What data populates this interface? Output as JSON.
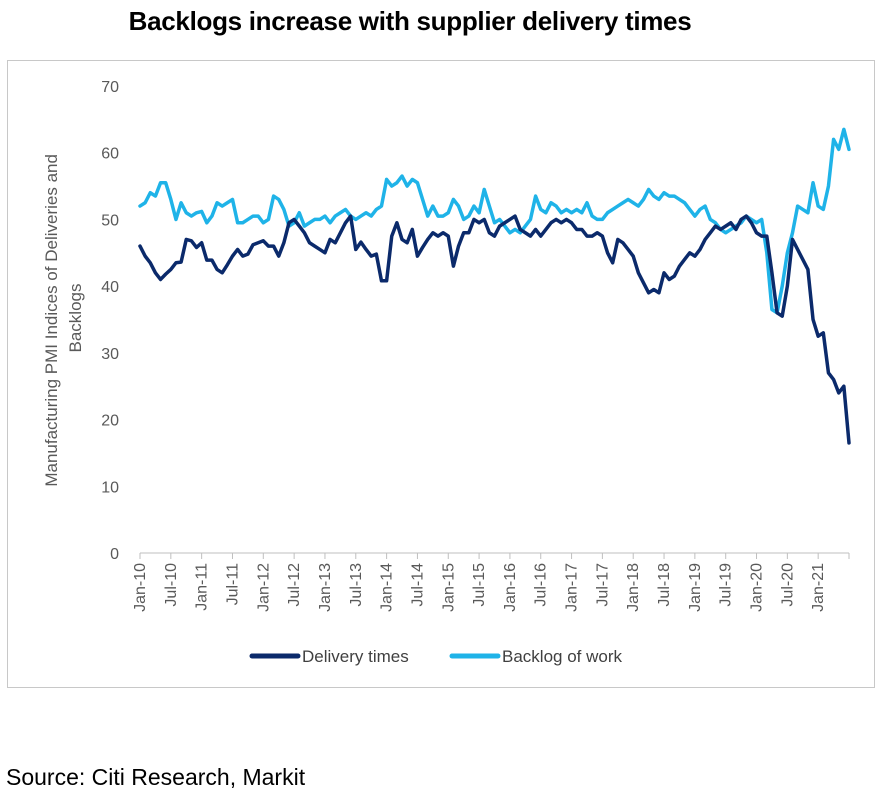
{
  "page": {
    "title": "Backlogs increase with supplier delivery times",
    "source": "Source: Citi Research, Markit"
  },
  "chart_data": {
    "type": "line",
    "ylabel_lines": [
      "Manufacturing PMI Indices of Deliveries and",
      "Backlogs"
    ],
    "xlabel": "",
    "ylim": [
      0,
      70
    ],
    "yticks": [
      0,
      10,
      20,
      30,
      40,
      50,
      60,
      70
    ],
    "grid": false,
    "legend_position": "bottom",
    "x_start": "2010-01",
    "x_months": 139,
    "xtick_labels": [
      "Jan-10",
      "Jul-10",
      "Jan-11",
      "Jul-11",
      "Jan-12",
      "Jul-12",
      "Jan-13",
      "Jul-13",
      "Jan-14",
      "Jul-14",
      "Jan-15",
      "Jul-15",
      "Jan-16",
      "Jul-16",
      "Jan-17",
      "Jul-17",
      "Jan-18",
      "Jul-18",
      "Jan-19",
      "Jul-19",
      "Jan-20",
      "Jul-20",
      "Jan-21"
    ],
    "colors": {
      "Delivery times": "#0b2a6b",
      "Backlog of work": "#1fb3e8"
    },
    "series": [
      {
        "name": "Delivery times",
        "values": [
          46.0,
          44.5,
          43.5,
          42.0,
          41.0,
          41.8,
          42.5,
          43.5,
          43.6,
          47.0,
          46.8,
          45.8,
          46.5,
          43.9,
          43.9,
          42.5,
          42.0,
          43.2,
          44.5,
          45.5,
          44.5,
          44.8,
          46.2,
          46.5,
          46.8,
          46.0,
          46.0,
          44.5,
          46.5,
          49.5,
          50.0,
          49.0,
          48.0,
          46.5,
          46.0,
          45.5,
          45.0,
          47.0,
          46.5,
          48.0,
          49.5,
          50.5,
          45.5,
          46.6,
          45.5,
          44.5,
          44.8,
          40.8,
          40.8,
          47.5,
          49.5,
          47.0,
          46.5,
          48.5,
          44.5,
          45.8,
          47.0,
          48.0,
          47.5,
          48.0,
          47.5,
          43.0,
          46.0,
          48.0,
          48.0,
          50.0,
          49.5,
          50.0,
          48.0,
          47.5,
          49.0,
          49.5,
          50.0,
          50.5,
          48.5,
          48.0,
          47.5,
          48.5,
          47.5,
          48.5,
          49.5,
          50.0,
          49.5,
          50.0,
          49.5,
          48.5,
          48.5,
          47.5,
          47.5,
          48.0,
          47.5,
          45.0,
          43.5,
          47.0,
          46.5,
          45.5,
          44.5,
          42.0,
          40.5,
          39.0,
          39.5,
          39.0,
          42.0,
          41.0,
          41.5,
          43.0,
          44.0,
          45.0,
          44.5,
          45.5,
          47.0,
          48.0,
          49.0,
          48.5,
          49.0,
          49.5,
          48.5,
          50.0,
          50.5,
          49.5,
          48.0,
          47.5,
          47.5,
          42.0,
          36.0,
          35.5,
          40.0,
          47.0,
          45.5,
          44.0,
          42.5,
          35.0,
          32.5,
          33.0,
          27.0,
          26.0,
          24.0,
          25.0,
          16.5
        ]
      },
      {
        "name": "Backlog of work",
        "values": [
          52.0,
          52.5,
          54.0,
          53.5,
          55.5,
          55.5,
          53.0,
          50.0,
          52.5,
          51.0,
          50.5,
          51.0,
          51.2,
          49.5,
          50.5,
          52.5,
          52.0,
          52.5,
          53.0,
          49.5,
          49.5,
          50.0,
          50.5,
          50.5,
          49.5,
          50.0,
          53.5,
          53.0,
          51.5,
          49.0,
          49.5,
          51.0,
          49.0,
          49.5,
          50.0,
          50.0,
          50.5,
          49.5,
          50.5,
          51.0,
          51.5,
          50.5,
          50.0,
          50.5,
          51.0,
          50.5,
          51.5,
          52.0,
          56.0,
          55.0,
          55.5,
          56.5,
          55.0,
          56.0,
          55.5,
          53.0,
          50.5,
          52.0,
          50.5,
          50.5,
          51.0,
          53.0,
          52.0,
          50.0,
          50.5,
          52.0,
          51.0,
          54.5,
          52.0,
          49.5,
          50.0,
          49.0,
          48.0,
          48.5,
          48.0,
          49.0,
          50.0,
          53.5,
          51.5,
          51.0,
          52.5,
          52.0,
          51.0,
          51.5,
          51.0,
          51.5,
          51.0,
          52.5,
          50.5,
          50.0,
          50.0,
          51.0,
          51.5,
          52.0,
          52.5,
          53.0,
          52.5,
          52.0,
          53.0,
          54.5,
          53.5,
          53.0,
          54.0,
          53.5,
          53.5,
          53.0,
          52.5,
          51.5,
          50.5,
          51.5,
          52.0,
          50.0,
          49.5,
          48.5,
          48.0,
          48.5,
          49.0,
          49.5,
          50.5,
          50.0,
          49.5,
          50.0,
          45.0,
          36.5,
          36.0,
          40.0,
          45.0,
          48.0,
          52.0,
          51.5,
          51.0,
          55.5,
          52.0,
          51.5,
          55.0,
          62.0,
          60.5,
          63.5,
          60.5
        ]
      }
    ]
  }
}
